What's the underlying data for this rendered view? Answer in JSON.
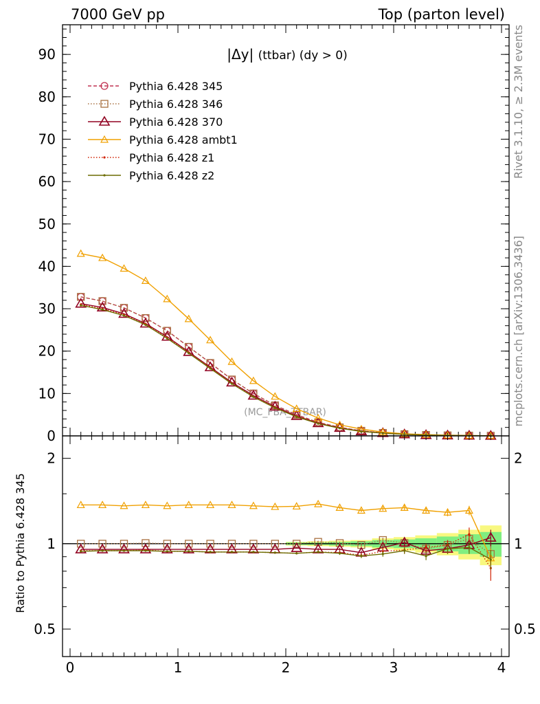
{
  "header": {
    "left": "7000 GeV pp",
    "right": "Top (parton level)"
  },
  "side": {
    "rivet": "Rivet 3.1.10, ≥ 2.3M events",
    "mcplots": "mcplots.cern.ch [arXiv:1306.3436]"
  },
  "colors": {
    "p345": "#c03050",
    "p346": "#a87040",
    "p370": "#900020",
    "ambt1": "#f0a000",
    "z1": "#d02000",
    "z2": "#6c6c00",
    "band_green": "#80ee80",
    "band_yellow": "#f8f880"
  },
  "chart_data": [
    {
      "type": "line",
      "title": "|Δy| (ttbar) (dy > 0)",
      "title_main": "|Δy|",
      "title_suffix": "(ttbar) (dy > 0)",
      "watermark": "(MC_FBA_TTBAR)",
      "xlabel": "",
      "ylabel": "",
      "xlim": [
        -0.07,
        4.07
      ],
      "ylim": [
        0,
        97
      ],
      "yticks": [
        0,
        10,
        20,
        30,
        40,
        50,
        60,
        70,
        80,
        90
      ],
      "yticklabels": [
        "0",
        "10",
        "20",
        "30",
        "40",
        "50",
        "60",
        "70",
        "80",
        "90"
      ],
      "legend_position": "top-left",
      "x": [
        0.1,
        0.3,
        0.5,
        0.7,
        0.9,
        1.1,
        1.3,
        1.5,
        1.7,
        1.9,
        2.1,
        2.3,
        2.5,
        2.7,
        2.9,
        3.1,
        3.3,
        3.5,
        3.7,
        3.9
      ],
      "series": [
        {
          "name": "Pythia 6.428 345",
          "marker": "circle",
          "dash": "dashed",
          "color_key": "p345",
          "values": [
            32.8,
            31.8,
            30.2,
            27.8,
            24.8,
            21.0,
            17.2,
            13.3,
            10.0,
            7.2,
            5.0,
            3.2,
            2.0,
            1.2,
            0.7,
            0.4,
            0.22,
            0.12,
            0.06,
            0.03
          ]
        },
        {
          "name": "Pythia 6.428 346",
          "marker": "square",
          "dash": "dotted",
          "color_key": "p346",
          "values": [
            32.8,
            31.8,
            30.2,
            27.8,
            24.8,
            21.0,
            17.2,
            13.3,
            10.0,
            7.2,
            5.0,
            3.2,
            2.0,
            1.2,
            0.7,
            0.4,
            0.22,
            0.12,
            0.06,
            0.03
          ]
        },
        {
          "name": "Pythia 6.428 370",
          "marker": "triangle",
          "dash": "solid",
          "color_key": "p370",
          "values": [
            31.2,
            30.3,
            28.8,
            26.5,
            23.4,
            19.8,
            16.2,
            12.6,
            9.5,
            6.9,
            4.7,
            3.0,
            1.9,
            1.1,
            0.67,
            0.38,
            0.2,
            0.11,
            0.06,
            0.03
          ]
        },
        {
          "name": "Pythia 6.428 ambt1",
          "marker": "triangle-open-small",
          "dash": "solid",
          "color_key": "ambt1",
          "values": [
            43.0,
            42.0,
            39.5,
            36.6,
            32.3,
            27.6,
            22.6,
            17.5,
            13.0,
            9.3,
            6.4,
            4.2,
            2.6,
            1.6,
            0.9,
            0.5,
            0.29,
            0.16,
            0.08,
            0.04
          ]
        },
        {
          "name": "Pythia 6.428 z1",
          "marker": "dot",
          "dash": "dotted",
          "color_key": "z1",
          "values": [
            31.0,
            30.0,
            28.6,
            26.4,
            23.2,
            19.7,
            16.1,
            12.4,
            9.3,
            6.7,
            4.6,
            3.0,
            1.85,
            1.1,
            0.66,
            0.37,
            0.2,
            0.11,
            0.06,
            0.03
          ]
        },
        {
          "name": "Pythia 6.428 z2",
          "marker": "dot",
          "dash": "solid",
          "color_key": "z2",
          "values": [
            30.8,
            29.8,
            28.4,
            26.2,
            23.0,
            19.5,
            15.9,
            12.3,
            9.2,
            6.6,
            4.5,
            2.9,
            1.8,
            1.05,
            0.63,
            0.36,
            0.19,
            0.11,
            0.06,
            0.03
          ]
        }
      ]
    },
    {
      "type": "line",
      "ylabel": "Ratio to Pythia 6.428 345",
      "xlabel": "",
      "xlim": [
        -0.07,
        4.07
      ],
      "ylim": [
        0.4,
        2.4
      ],
      "log_y": true,
      "yticks": [
        0.5,
        1,
        2
      ],
      "yticklabels": [
        "0.5",
        "1",
        "2"
      ],
      "xticks": [
        0,
        1,
        2,
        3,
        4
      ],
      "xticklabels": [
        "0",
        "1",
        "2",
        "3",
        "4"
      ],
      "x": [
        0.1,
        0.3,
        0.5,
        0.7,
        0.9,
        1.1,
        1.3,
        1.5,
        1.7,
        1.9,
        2.1,
        2.3,
        2.5,
        2.7,
        2.9,
        3.1,
        3.3,
        3.5,
        3.7,
        3.9
      ],
      "band": {
        "x_edges": [
          2.0,
          2.2,
          2.4,
          2.6,
          2.8,
          3.0,
          3.2,
          3.4,
          3.6,
          3.8,
          4.0
        ],
        "green": [
          0.01,
          0.01,
          0.015,
          0.02,
          0.03,
          0.035,
          0.045,
          0.06,
          0.08,
          0.1
        ],
        "yellow": [
          0.015,
          0.02,
          0.025,
          0.03,
          0.045,
          0.055,
          0.07,
          0.09,
          0.12,
          0.16
        ]
      },
      "series": [
        {
          "name": "Pythia 6.428 345",
          "color_key": "p345",
          "marker": "circle",
          "dash": "dashed",
          "values": [
            1,
            1,
            1,
            1,
            1,
            1,
            1,
            1,
            1,
            1,
            1,
            1,
            1,
            1,
            1,
            1,
            1,
            1,
            1,
            1
          ]
        },
        {
          "name": "Pythia 6.428 346",
          "color_key": "p346",
          "marker": "square",
          "dash": "dotted",
          "values": [
            1.0,
            1.0,
            1.0,
            1.005,
            1.0,
            1.0,
            1.0,
            1.0,
            1.0,
            1.0,
            1.0,
            1.015,
            1.005,
            0.99,
            1.03,
            1.005,
            0.96,
            0.99,
            1.04,
            0.92
          ],
          "errors": [
            0.003,
            0.003,
            0.003,
            0.003,
            0.003,
            0.003,
            0.004,
            0.004,
            0.005,
            0.006,
            0.008,
            0.01,
            0.012,
            0.015,
            0.02,
            0.025,
            0.03,
            0.04,
            0.05,
            0.07
          ]
        },
        {
          "name": "Pythia 6.428 370",
          "color_key": "p370",
          "marker": "triangle",
          "dash": "solid",
          "values": [
            0.955,
            0.955,
            0.955,
            0.955,
            0.955,
            0.955,
            0.955,
            0.955,
            0.955,
            0.955,
            0.965,
            0.955,
            0.955,
            0.93,
            0.97,
            1.01,
            0.945,
            0.96,
            0.99,
            1.05
          ],
          "errors": [
            0.003,
            0.003,
            0.003,
            0.003,
            0.003,
            0.003,
            0.004,
            0.004,
            0.005,
            0.006,
            0.008,
            0.01,
            0.012,
            0.015,
            0.02,
            0.025,
            0.03,
            0.04,
            0.05,
            0.07
          ]
        },
        {
          "name": "Pythia 6.428 ambt1",
          "color_key": "ambt1",
          "marker": "triangle-open-small",
          "dash": "solid",
          "values": [
            1.37,
            1.37,
            1.36,
            1.37,
            1.36,
            1.37,
            1.37,
            1.37,
            1.36,
            1.35,
            1.355,
            1.38,
            1.34,
            1.31,
            1.33,
            1.34,
            1.31,
            1.29,
            1.31,
            0.89
          ],
          "errors": [
            0.004,
            0.004,
            0.004,
            0.004,
            0.004,
            0.004,
            0.005,
            0.005,
            0.006,
            0.007,
            0.01,
            0.012,
            0.014,
            0.018,
            0.022,
            0.025,
            0.03,
            0.04,
            0.05,
            0.07
          ]
        },
        {
          "name": "Pythia 6.428 z1",
          "color_key": "z1",
          "marker": "dot",
          "dash": "dotted",
          "values": [
            0.945,
            0.945,
            0.945,
            0.95,
            0.94,
            0.94,
            0.935,
            0.935,
            0.935,
            0.93,
            0.925,
            0.935,
            0.93,
            0.91,
            0.94,
            0.95,
            0.97,
            0.99,
            1.08,
            0.82
          ],
          "errors": [
            0.003,
            0.003,
            0.003,
            0.003,
            0.003,
            0.003,
            0.004,
            0.004,
            0.005,
            0.006,
            0.008,
            0.01,
            0.012,
            0.015,
            0.02,
            0.025,
            0.03,
            0.04,
            0.06,
            0.08
          ]
        },
        {
          "name": "Pythia 6.428 z2",
          "color_key": "z2",
          "marker": "dot",
          "dash": "solid",
          "values": [
            0.94,
            0.945,
            0.945,
            0.945,
            0.94,
            0.94,
            0.935,
            0.935,
            0.935,
            0.93,
            0.925,
            0.935,
            0.925,
            0.905,
            0.92,
            0.945,
            0.905,
            0.96,
            0.97,
            0.88
          ],
          "errors": [
            0.003,
            0.003,
            0.003,
            0.003,
            0.003,
            0.003,
            0.004,
            0.004,
            0.005,
            0.006,
            0.008,
            0.01,
            0.012,
            0.015,
            0.02,
            0.025,
            0.03,
            0.04,
            0.05,
            0.07
          ]
        }
      ]
    }
  ]
}
